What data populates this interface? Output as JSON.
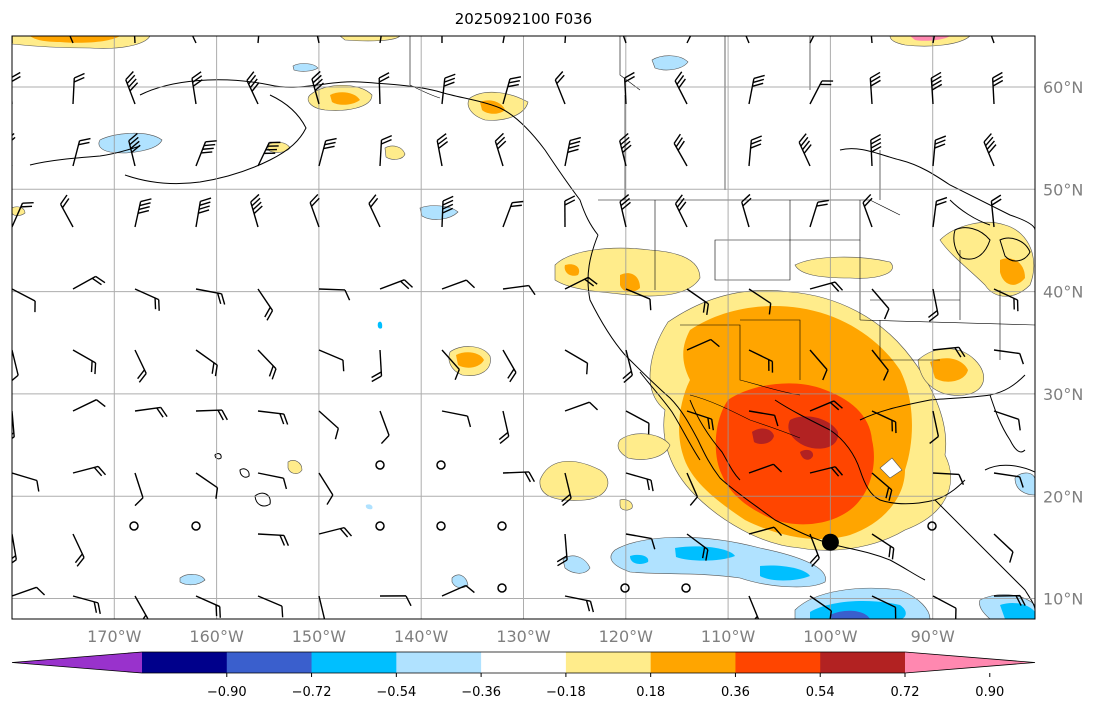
{
  "title": "2025092100 F036",
  "map": {
    "lon_labels": [
      {
        "text": "170°W",
        "lon": -170
      },
      {
        "text": "160°W",
        "lon": -160
      },
      {
        "text": "150°W",
        "lon": -150
      },
      {
        "text": "140°W",
        "lon": -140
      },
      {
        "text": "130°W",
        "lon": -130
      },
      {
        "text": "120°W",
        "lon": -120
      },
      {
        "text": "110°W",
        "lon": -110
      },
      {
        "text": "100°W",
        "lon": -100
      },
      {
        "text": "90°W",
        "lon": -90
      }
    ],
    "lat_labels": [
      {
        "text": "60°N",
        "lat": 60
      },
      {
        "text": "50°N",
        "lat": 50
      },
      {
        "text": "40°N",
        "lat": 40
      },
      {
        "text": "30°N",
        "lat": 30
      },
      {
        "text": "20°N",
        "lat": 20
      },
      {
        "text": "10°N",
        "lat": 10
      }
    ],
    "lon_range": [
      -180,
      -80
    ],
    "lat_range": [
      8,
      65
    ],
    "gridlines": true,
    "marker": {
      "lon": -100,
      "lat": 15.5
    }
  },
  "colorbar": {
    "tick_labels": [
      "−0.90",
      "−0.72",
      "−0.54",
      "−0.36",
      "−0.18",
      "0.18",
      "0.36",
      "0.54",
      "0.72",
      "0.90"
    ],
    "colors": [
      "#9932cc",
      "#00008b",
      "#3a5fcd",
      "#00bfff",
      "#b0e2ff",
      "#ffffff",
      "#ffec8b",
      "#ffa500",
      "#ff4500",
      "#b22222",
      "#ff88b0"
    ]
  }
}
